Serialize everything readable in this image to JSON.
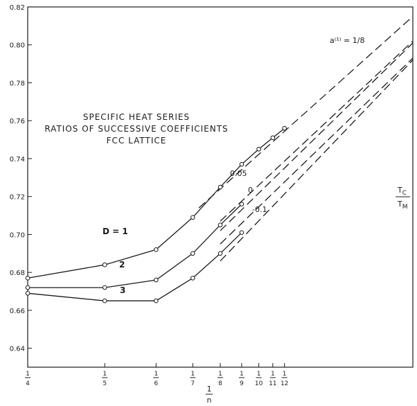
{
  "chart_data": {
    "type": "line",
    "title": [
      "SPECIFIC HEAT SERIES",
      "RATIOS OF SUCCESSIVE COEFFICIENTS",
      "FCC LATTICE"
    ],
    "xlabel": {
      "num": "1",
      "den": "n"
    },
    "ylabel": {
      "num": "T",
      "num_sub": "C",
      "den": "T",
      "den_sub": "M"
    },
    "xlim": [
      0,
      0.25
    ],
    "ylim": [
      0.63,
      0.82
    ],
    "x_ticks": [
      {
        "x": 0.25,
        "num": "1",
        "den": "4"
      },
      {
        "x": 0.2,
        "num": "1",
        "den": "5"
      },
      {
        "x": 0.16667,
        "num": "1",
        "den": "6"
      },
      {
        "x": 0.14286,
        "num": "1",
        "den": "7"
      },
      {
        "x": 0.125,
        "num": "1",
        "den": "8"
      },
      {
        "x": 0.11111,
        "num": "1",
        "den": "9"
      },
      {
        "x": 0.1,
        "num": "1",
        "den": "10"
      },
      {
        "x": 0.09091,
        "num": "1",
        "den": "11"
      },
      {
        "x": 0.08333,
        "num": "1",
        "den": "12"
      }
    ],
    "y_ticks": [
      {
        "value": 0.64,
        "label": "0.64"
      },
      {
        "value": 0.66,
        "label": "0.66"
      },
      {
        "value": 0.68,
        "label": "0.68"
      },
      {
        "value": 0.7,
        "label": "0.70"
      },
      {
        "value": 0.72,
        "label": "0.72"
      },
      {
        "value": 0.74,
        "label": "0.74"
      },
      {
        "value": 0.76,
        "label": "0.76"
      },
      {
        "value": 0.78,
        "label": "0.78"
      },
      {
        "value": 0.8,
        "label": "0.80"
      },
      {
        "value": 0.82,
        "label": "0.82"
      }
    ],
    "series": [
      {
        "name": "D = 1",
        "x": [
          0.25,
          0.2,
          0.16667,
          0.14286,
          0.125,
          0.11111,
          0.1,
          0.09091,
          0.08333
        ],
        "y": [
          0.677,
          0.684,
          0.692,
          0.709,
          0.725,
          0.737,
          0.745,
          0.751,
          0.756
        ]
      },
      {
        "name": "2",
        "x": [
          0.25,
          0.2,
          0.16667,
          0.14286,
          0.125,
          0.11111
        ],
        "y": [
          0.672,
          0.672,
          0.676,
          0.69,
          0.705,
          0.716
        ]
      },
      {
        "name": "3",
        "x": [
          0.25,
          0.2,
          0.16667,
          0.14286,
          0.125,
          0.11111
        ],
        "y": [
          0.669,
          0.665,
          0.665,
          0.677,
          0.69,
          0.701
        ]
      }
    ],
    "extrapolations": [
      {
        "label": "a⁽¹⁾ = 1/8",
        "x": [
          0.13889,
          0.0
        ],
        "y": [
          0.714,
          0.815
        ]
      },
      {
        "label": "0.05",
        "x": [
          0.125,
          0.0
        ],
        "y": [
          0.707,
          0.802
        ]
      },
      {
        "label": "",
        "x": [
          0.125,
          0.0
        ],
        "y": [
          0.702,
          0.801
        ]
      },
      {
        "label": "0",
        "x": [
          0.125,
          0.0
        ],
        "y": [
          0.695,
          0.793
        ]
      },
      {
        "label": "-0.1",
        "x": [
          0.125,
          0.0
        ],
        "y": [
          0.686,
          0.792
        ]
      }
    ],
    "grid": false
  }
}
